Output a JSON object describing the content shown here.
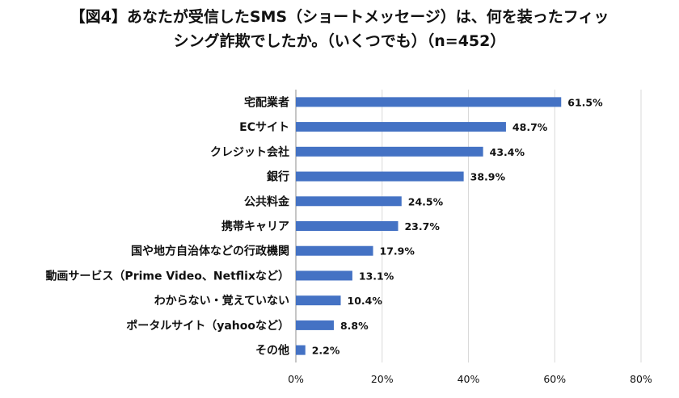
{
  "chart_data": {
    "type": "bar",
    "orientation": "horizontal",
    "title": "【図4】あなたが受信したSMS（ショートメッセージ）は、何を装ったフィッシング詐欺でしたか。（いくつでも）（n=452）",
    "title_lines": [
      "【図4】あなたが受信したSMS（ショートメッセージ）は、何を装ったフィッ",
      "シング詐欺でしたか。（いくつでも）（n=452）"
    ],
    "categories": [
      "宅配業者",
      "ECサイト",
      "クレジット会社",
      "銀行",
      "公共料金",
      "携帯キャリア",
      "国や地方自治体などの行政機関",
      "動画サービス（Prime Video、Netflixなど）",
      "わからない・覚えていない",
      "ポータルサイト（yahooなど）",
      "その他"
    ],
    "values": [
      61.5,
      48.7,
      43.4,
      38.9,
      24.5,
      23.7,
      17.9,
      13.1,
      10.4,
      8.8,
      2.2
    ],
    "value_labels": [
      "61.5%",
      "48.7%",
      "43.4%",
      "38.9%",
      "24.5%",
      "23.7%",
      "17.9%",
      "13.1%",
      "10.4%",
      "8.8%",
      "2.2%"
    ],
    "xlim": [
      0,
      80
    ],
    "xticks": [
      0,
      20,
      40,
      60,
      80
    ],
    "xtick_labels": [
      "0%",
      "20%",
      "40%",
      "60%",
      "80%"
    ],
    "xlabel": "",
    "ylabel": "",
    "grid": true,
    "bar_color": "#4472C4",
    "grid_color": "#d9d9d9"
  }
}
